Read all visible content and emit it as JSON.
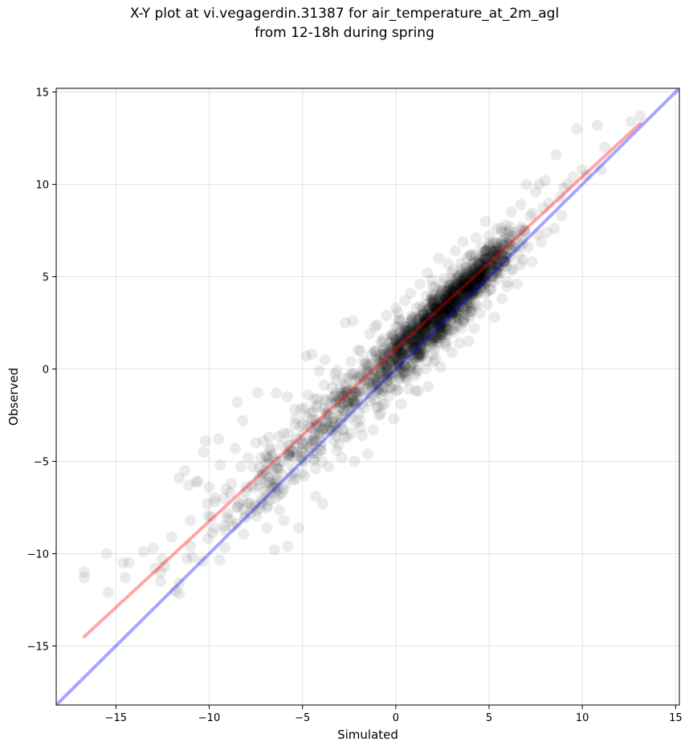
{
  "chart_data": {
    "type": "scatter",
    "title_line1": "X-Y plot at vi.vegagerdin.31387 for air_temperature_at_2m_agl",
    "title_line2": "from 12-18h during spring",
    "xlabel": "Simulated",
    "ylabel": "Observed",
    "xlim": [
      -18.2,
      15.2
    ],
    "ylim": [
      -18.2,
      15.2
    ],
    "xticks": [
      -15,
      -10,
      -5,
      0,
      5,
      10,
      15
    ],
    "yticks": [
      -15,
      -10,
      -5,
      0,
      5,
      10,
      15
    ],
    "xtick_labels": [
      "−15",
      "−10",
      "−5",
      "0",
      "5",
      "10",
      "15"
    ],
    "ytick_labels": [
      "−15",
      "−10",
      "−5",
      "0",
      "5",
      "10",
      "15"
    ],
    "grid": true,
    "point_color": "#000000",
    "point_alpha": 0.08,
    "points": [
      [
        -16.7,
        -11.0
      ],
      [
        -16.7,
        -11.3
      ],
      [
        -15.5,
        -10.0
      ],
      [
        -15.4,
        -12.1
      ],
      [
        -14.6,
        -10.5
      ],
      [
        -14.5,
        -11.3
      ],
      [
        -14.3,
        -10.5
      ],
      [
        -13.5,
        -9.9
      ],
      [
        -13.0,
        -9.7
      ],
      [
        -12.9,
        -10.8
      ],
      [
        -12.6,
        -11.5
      ],
      [
        -12.6,
        -11.0
      ],
      [
        -12.4,
        -10.7
      ],
      [
        -12.0,
        -9.1
      ],
      [
        -11.6,
        -11.6
      ],
      [
        -11.6,
        -5.9
      ],
      [
        -11.3,
        -5.5
      ],
      [
        -11.1,
        -6.3
      ],
      [
        -11.0,
        -8.2
      ],
      [
        -11.0,
        -9.6
      ],
      [
        -10.9,
        -10.2
      ],
      [
        -10.7,
        -6.1
      ],
      [
        -10.6,
        -6.1
      ],
      [
        -10.3,
        -4.5
      ],
      [
        -10.2,
        -3.9
      ],
      [
        -10.1,
        -7.3
      ],
      [
        -10.0,
        -6.4
      ],
      [
        -9.9,
        -8.0
      ],
      [
        -9.7,
        -7.2
      ],
      [
        -9.5,
        -3.8
      ],
      [
        -9.4,
        -5.2
      ],
      [
        -9.2,
        -7.0
      ],
      [
        -9.1,
        -6.5
      ],
      [
        -9.0,
        -7.8
      ],
      [
        -8.8,
        -6.2
      ],
      [
        -8.6,
        -4.3
      ],
      [
        -8.5,
        -1.8
      ],
      [
        -8.4,
        -7.3
      ],
      [
        -8.3,
        -5.3
      ],
      [
        -8.2,
        -2.8
      ],
      [
        -8.0,
        -6.4
      ],
      [
        -7.9,
        -4.8
      ],
      [
        -7.7,
        -7.5
      ],
      [
        -7.5,
        -4.0
      ],
      [
        -7.4,
        -1.3
      ],
      [
        -7.3,
        -5.8
      ],
      [
        -7.1,
        -3.9
      ],
      [
        -7.0,
        -6.6
      ],
      [
        -6.9,
        -8.6
      ],
      [
        -6.8,
        -3.7
      ],
      [
        -6.6,
        -4.6
      ],
      [
        -6.5,
        -9.8
      ],
      [
        -6.4,
        -1.3
      ],
      [
        -6.2,
        -5.0
      ],
      [
        -6.0,
        -3.5
      ],
      [
        -6.0,
        -8.2
      ],
      [
        -5.8,
        -1.5
      ],
      [
        -5.8,
        -9.6
      ],
      [
        -5.6,
        -4.1
      ],
      [
        -5.5,
        -6.0
      ],
      [
        -5.4,
        -2.2
      ],
      [
        -5.3,
        -4.5
      ],
      [
        -5.2,
        -8.6
      ],
      [
        -5.0,
        -3.0
      ],
      [
        -5.0,
        -4.9
      ],
      [
        -4.9,
        -5.8
      ],
      [
        -4.8,
        0.7
      ],
      [
        -4.7,
        -1.4
      ],
      [
        -4.6,
        -2.4
      ],
      [
        -4.5,
        0.8
      ],
      [
        -4.4,
        -3.6
      ],
      [
        -4.3,
        -5.4
      ],
      [
        -4.3,
        -6.9
      ],
      [
        -4.2,
        -1.6
      ],
      [
        -4.1,
        -0.1
      ],
      [
        -4.0,
        -4.4
      ],
      [
        -3.9,
        -7.3
      ],
      [
        -3.8,
        0.5
      ],
      [
        -3.7,
        -2.8
      ],
      [
        -3.6,
        -5.3
      ],
      [
        -3.4,
        -1.0
      ],
      [
        -3.3,
        -3.9
      ],
      [
        -3.2,
        -0.6
      ],
      [
        -3.0,
        -1.8
      ],
      [
        -2.9,
        -4.8
      ],
      [
        -2.8,
        -2.6
      ],
      [
        -2.7,
        2.5
      ],
      [
        -2.6,
        -3.7
      ],
      [
        -2.4,
        0.4
      ],
      [
        -2.3,
        -1.2
      ],
      [
        -2.3,
        2.6
      ],
      [
        -2.2,
        -5.0
      ],
      [
        -2.1,
        -2.9
      ],
      [
        -2.0,
        -0.4
      ],
      [
        -1.9,
        1.0
      ],
      [
        -1.8,
        -3.6
      ],
      [
        -1.7,
        -2.1
      ],
      [
        -1.6,
        0.3
      ],
      [
        -1.5,
        -4.6
      ],
      [
        -1.4,
        1.9
      ],
      [
        -1.3,
        -1.5
      ],
      [
        -1.2,
        -3.3
      ],
      [
        -1.1,
        0.9
      ],
      [
        -1.0,
        -0.9
      ],
      [
        -1.0,
        2.4
      ],
      [
        -0.9,
        -2.5
      ],
      [
        -0.8,
        1.5
      ],
      [
        -0.7,
        0.1
      ],
      [
        -0.6,
        -1.9
      ],
      [
        -0.5,
        2.9
      ],
      [
        -0.4,
        0.7
      ],
      [
        -0.3,
        -1.0
      ],
      [
        -0.2,
        1.8
      ],
      [
        -0.1,
        -2.7
      ],
      [
        0.0,
        0.4
      ],
      [
        0.0,
        3.3
      ],
      [
        0.1,
        1.2
      ],
      [
        0.2,
        -0.5
      ],
      [
        0.2,
        2.6
      ],
      [
        0.3,
        -1.9
      ],
      [
        0.4,
        1.6
      ],
      [
        0.5,
        3.7
      ],
      [
        0.5,
        0.2
      ],
      [
        0.6,
        2.1
      ],
      [
        0.7,
        -1.1
      ],
      [
        0.8,
        4.1
      ],
      [
        0.9,
        1.4
      ],
      [
        0.9,
        2.8
      ],
      [
        1.0,
        0.6
      ],
      [
        1.1,
        3.3
      ],
      [
        1.2,
        -1.2
      ],
      [
        1.2,
        2.0
      ],
      [
        1.3,
        4.6
      ],
      [
        1.4,
        1.0
      ],
      [
        1.5,
        3.0
      ],
      [
        1.6,
        0.0
      ],
      [
        1.6,
        2.4
      ],
      [
        1.7,
        5.2
      ],
      [
        1.8,
        1.6
      ],
      [
        1.9,
        3.8
      ],
      [
        2.0,
        0.8
      ],
      [
        2.0,
        2.7
      ],
      [
        2.1,
        4.4
      ],
      [
        2.2,
        1.9
      ],
      [
        2.3,
        6.0
      ],
      [
        2.3,
        3.2
      ],
      [
        2.4,
        0.1
      ],
      [
        2.5,
        2.3
      ],
      [
        2.6,
        4.9
      ],
      [
        2.7,
        1.5
      ],
      [
        2.7,
        3.6
      ],
      [
        2.8,
        5.7
      ],
      [
        2.9,
        2.9
      ],
      [
        3.0,
        0.9
      ],
      [
        3.0,
        4.2
      ],
      [
        3.1,
        2.0
      ],
      [
        3.2,
        6.4
      ],
      [
        3.3,
        3.4
      ],
      [
        3.3,
        5.0
      ],
      [
        3.4,
        1.4
      ],
      [
        3.5,
        4.4
      ],
      [
        3.6,
        2.6
      ],
      [
        3.6,
        6.9
      ],
      [
        3.7,
        3.9
      ],
      [
        3.8,
        5.5
      ],
      [
        3.9,
        1.5
      ],
      [
        3.9,
        4.6
      ],
      [
        4.0,
        3.1
      ],
      [
        4.1,
        6.2
      ],
      [
        4.2,
        5.0
      ],
      [
        4.2,
        2.2
      ],
      [
        4.3,
        7.1
      ],
      [
        4.4,
        4.1
      ],
      [
        4.5,
        5.7
      ],
      [
        4.5,
        3.0
      ],
      [
        4.6,
        6.6
      ],
      [
        4.7,
        4.6
      ],
      [
        4.8,
        8.0
      ],
      [
        4.9,
        3.5
      ],
      [
        4.9,
        5.9
      ],
      [
        5.0,
        7.2
      ],
      [
        5.1,
        4.3
      ],
      [
        5.2,
        6.4
      ],
      [
        5.3,
        2.8
      ],
      [
        5.3,
        5.3
      ],
      [
        5.4,
        7.6
      ],
      [
        5.5,
        4.9
      ],
      [
        5.6,
        6.8
      ],
      [
        5.7,
        3.8
      ],
      [
        5.8,
        5.8
      ],
      [
        5.9,
        7.8
      ],
      [
        6.0,
        4.7
      ],
      [
        6.1,
        6.5
      ],
      [
        6.2,
        8.5
      ],
      [
        6.3,
        5.4
      ],
      [
        6.4,
        7.2
      ],
      [
        6.5,
        4.6
      ],
      [
        6.6,
        6.2
      ],
      [
        6.7,
        8.9
      ],
      [
        6.8,
        5.9
      ],
      [
        6.9,
        7.5
      ],
      [
        7.0,
        10.0
      ],
      [
        7.1,
        6.6
      ],
      [
        7.2,
        8.3
      ],
      [
        7.3,
        5.8
      ],
      [
        7.5,
        9.6
      ],
      [
        7.6,
        7.3
      ],
      [
        7.7,
        10.0
      ],
      [
        7.8,
        6.9
      ],
      [
        7.9,
        8.7
      ],
      [
        8.0,
        10.2
      ],
      [
        8.1,
        7.4
      ],
      [
        8.2,
        9.0
      ],
      [
        8.5,
        7.6
      ],
      [
        8.6,
        11.6
      ],
      [
        8.8,
        9.3
      ],
      [
        8.9,
        8.3
      ],
      [
        9.0,
        9.8
      ],
      [
        9.2,
        10.0
      ],
      [
        9.5,
        10.4
      ],
      [
        9.7,
        13.0
      ],
      [
        10.0,
        10.8
      ],
      [
        10.2,
        10.5
      ],
      [
        10.8,
        13.2
      ],
      [
        11.0,
        10.8
      ],
      [
        11.2,
        12.0
      ],
      [
        12.6,
        13.4
      ],
      [
        13.1,
        13.7
      ]
    ],
    "dense_clouds": [
      {
        "cx": 2.6,
        "cy": 3.0,
        "sx": 1.5,
        "sy": 1.7,
        "n": 650
      },
      {
        "cx": 4.3,
        "cy": 5.0,
        "sx": 1.1,
        "sy": 1.1,
        "n": 320
      },
      {
        "cx": 0.6,
        "cy": 1.4,
        "sx": 1.2,
        "sy": 1.4,
        "n": 260
      },
      {
        "cx": -2.5,
        "cy": -1.7,
        "sx": 1.6,
        "sy": 1.9,
        "n": 170
      },
      {
        "cx": -6.5,
        "cy": -5.6,
        "sx": 2.0,
        "sy": 2.2,
        "n": 150
      }
    ],
    "lines": [
      {
        "x": [
          -16.7,
          13.1
        ],
        "y": [
          -14.5,
          13.3
        ],
        "color": "#ff0000",
        "alpha": 0.35,
        "width": 4
      },
      {
        "x": [
          -18.2,
          15.2
        ],
        "y": [
          -18.2,
          15.2
        ],
        "color": "#0000ff",
        "alpha": 0.35,
        "width": 4
      }
    ]
  }
}
